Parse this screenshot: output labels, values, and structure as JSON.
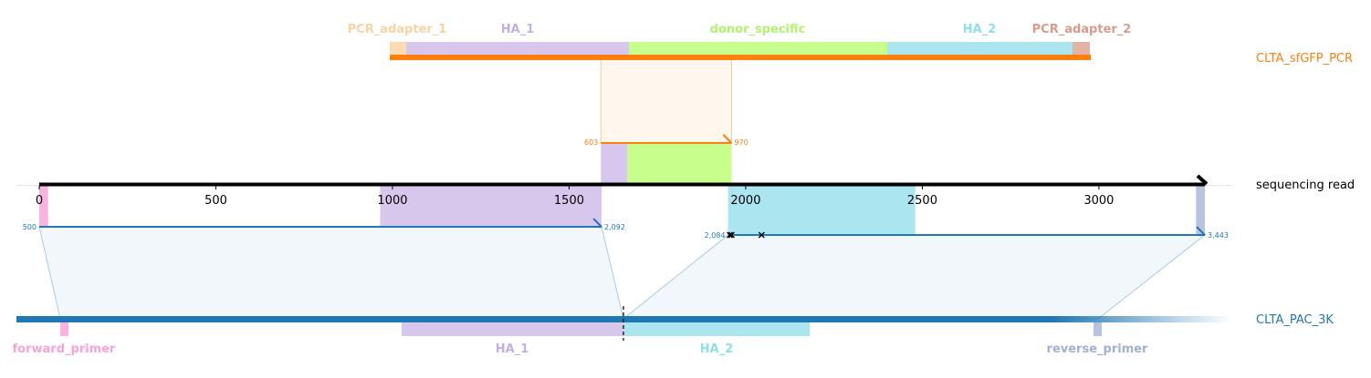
{
  "colors": {
    "pcr": "#ff7f0e",
    "ref": "#1f77b4",
    "read_axis": "#000000",
    "pcr_adapter_1": "#fddbb3",
    "ha_1": "#d7c7ec",
    "donor_specific": "#c8ff8c",
    "ha_2": "#abe5ef",
    "pcr_adapter_2": "#e3b3a6",
    "forward_primer": "#fbb4e1",
    "reverse_primer": "#b8c3df",
    "mismatch": "#000000"
  },
  "top_track": {
    "name": "CLTA_sfGFP_PCR",
    "features": [
      {
        "label": "PCR_adapter_1",
        "color_key": "pcr_adapter_1",
        "text_color": "#f9d3a4"
      },
      {
        "label": "HA_1",
        "color_key": "ha_1",
        "text_color": "#c3afe4"
      },
      {
        "label": "donor_specific",
        "color_key": "donor_specific",
        "text_color": "#b1f46b"
      },
      {
        "label": "HA_2",
        "color_key": "ha_2",
        "text_color": "#8fdfeb"
      },
      {
        "label": "PCR_adapter_2",
        "color_key": "pcr_adapter_2",
        "text_color": "#d99b8c"
      }
    ]
  },
  "read": {
    "name": "sequencing read",
    "axis": {
      "min": 0,
      "max": 3300,
      "ticks": [
        0,
        500,
        1000,
        1500,
        2000,
        2500,
        3000
      ]
    },
    "pcr_alignment": {
      "start_label": "603",
      "end_label": "970",
      "read_start": 1590,
      "read_end": 1960
    },
    "ref_alignments": [
      {
        "start_label": "500",
        "end_label": "2,092",
        "read_start": 0,
        "read_end": 1592
      },
      {
        "start_label": "2,084",
        "end_label": "3,443",
        "read_start": 1950,
        "read_end": 3300
      }
    ],
    "read_features": [
      {
        "name": "forward_primer",
        "color_key": "forward_primer",
        "start": 0,
        "end": 25
      },
      {
        "name": "HA_1",
        "color_key": "ha_1",
        "start": 965,
        "end": 1592
      },
      {
        "name": "HA_1",
        "color_key": "ha_1",
        "start": 1590,
        "end": 1665
      },
      {
        "name": "donor_specific",
        "color_key": "donor_specific",
        "start": 1665,
        "end": 1960
      },
      {
        "name": "HA_2",
        "color_key": "ha_2",
        "start": 1950,
        "end": 2480
      },
      {
        "name": "reverse_primer",
        "color_key": "reverse_primer",
        "start": 3275,
        "end": 3300
      }
    ],
    "mismatches": [
      1955,
      1960,
      2045
    ]
  },
  "bottom_track": {
    "name": "CLTA_PAC_3K",
    "features": [
      {
        "label": "forward_primer",
        "color_key": "forward_primer",
        "text_color": "#f6a3d6"
      },
      {
        "label": "HA_1",
        "color_key": "ha_1",
        "text_color": "#c3afe4"
      },
      {
        "label": "HA_2",
        "color_key": "ha_2",
        "text_color": "#8fdfeb"
      },
      {
        "label": "reverse_primer",
        "color_key": "reverse_primer",
        "text_color": "#a3b0d3"
      }
    ]
  }
}
